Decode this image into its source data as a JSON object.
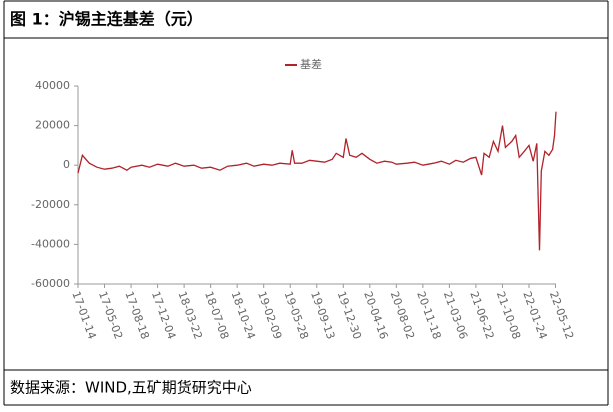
{
  "header": {
    "title": "图 1：沪锡主连基差（元）"
  },
  "chart_data": {
    "type": "line",
    "x": [
      "17-01-14",
      "17-02-01",
      "17-03-01",
      "17-04-01",
      "17-05-02",
      "17-06-01",
      "17-07-01",
      "17-08-01",
      "17-08-18",
      "17-10-01",
      "17-11-01",
      "17-12-04",
      "18-01-15",
      "18-02-15",
      "18-03-22",
      "18-05-01",
      "18-06-01",
      "18-07-08",
      "18-08-15",
      "18-09-15",
      "18-10-24",
      "18-12-01",
      "19-01-01",
      "19-02-09",
      "19-03-15",
      "19-04-15",
      "19-05-28",
      "19-06-05",
      "19-06-15",
      "19-07-15",
      "19-08-15",
      "19-09-13",
      "19-10-15",
      "19-11-15",
      "19-12-01",
      "19-12-30",
      "20-01-10",
      "20-01-25",
      "20-02-20",
      "20-03-15",
      "20-04-16",
      "20-05-15",
      "20-06-15",
      "20-07-15",
      "20-08-02",
      "20-09-15",
      "20-10-15",
      "20-11-18",
      "21-01-01",
      "21-02-01",
      "21-03-06",
      "21-04-01",
      "21-05-01",
      "21-06-01",
      "21-06-22",
      "21-07-15",
      "21-07-25",
      "21-08-15",
      "21-09-01",
      "21-09-20",
      "21-10-08",
      "21-10-20",
      "21-11-15",
      "21-12-01",
      "21-12-15",
      "22-01-05",
      "22-01-24",
      "22-02-10",
      "22-02-25",
      "22-03-08",
      "22-03-15",
      "22-03-30",
      "22-04-15",
      "22-04-30",
      "22-05-08",
      "22-05-14"
    ],
    "series": [
      {
        "name": "基差",
        "color": "#b0232a",
        "values": [
          -4000,
          5000,
          1000,
          -1000,
          -2000,
          -1500,
          -500,
          -2500,
          -1000,
          0,
          -1000,
          500,
          -500,
          1000,
          -500,
          0,
          -1500,
          -1000,
          -2500,
          -500,
          0,
          1000,
          -500,
          500,
          0,
          1000,
          500,
          7500,
          1000,
          1000,
          2500,
          2000,
          1500,
          3000,
          6000,
          4000,
          13500,
          5000,
          4000,
          6000,
          3000,
          1000,
          2000,
          1500,
          500,
          1000,
          1500,
          0,
          1000,
          2000,
          500,
          2500,
          1500,
          3500,
          4000,
          -5000,
          6000,
          4000,
          12000,
          7000,
          20000,
          9000,
          12000,
          15000,
          4000,
          7000,
          10000,
          2000,
          11000,
          -43000,
          -3000,
          7000,
          5000,
          8000,
          15000,
          27000
        ]
      }
    ],
    "xticks": [
      "17-01-14",
      "17-05-02",
      "17-08-18",
      "17-12-04",
      "18-03-22",
      "18-07-08",
      "18-10-24",
      "19-02-09",
      "19-05-28",
      "19-09-13",
      "19-12-30",
      "20-04-16",
      "20-08-02",
      "20-11-18",
      "21-03-06",
      "21-06-22",
      "21-10-08",
      "22-01-24",
      "22-05-12"
    ],
    "ylim": [
      -60000,
      40000
    ],
    "yticks": [
      -60000,
      -40000,
      -20000,
      0,
      20000,
      40000
    ],
    "legend": "top"
  },
  "footer": {
    "source": "数据来源：WIND,五矿期货研究中心"
  }
}
